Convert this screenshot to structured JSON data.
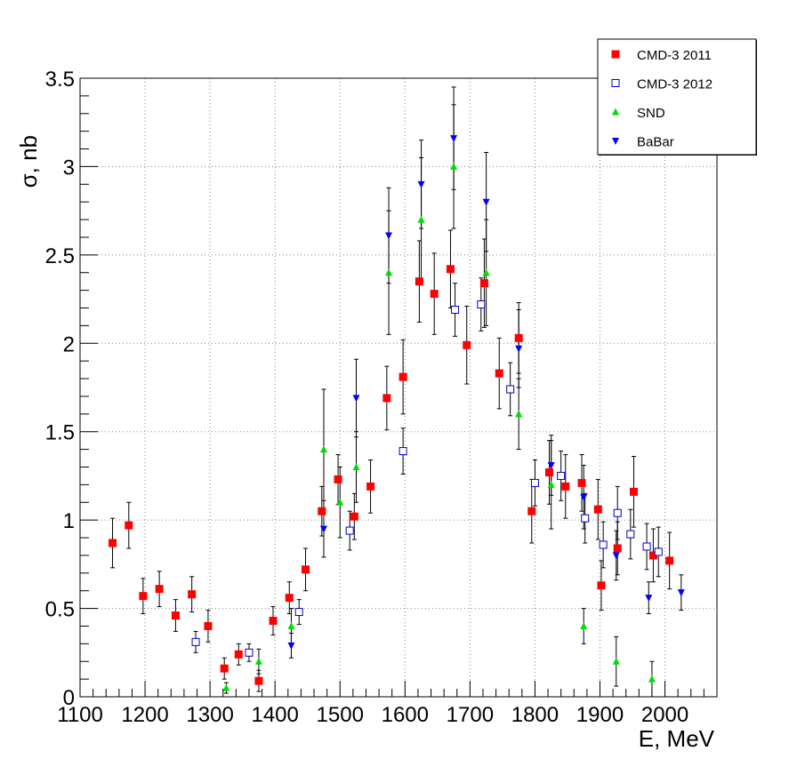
{
  "chart_data": {
    "type": "scatter",
    "title": "",
    "xlabel": "E, MeV",
    "ylabel": "σ, nb",
    "xlim": [
      1100,
      2080
    ],
    "ylim": [
      0,
      3.5
    ],
    "x_ticks": [
      "1100",
      "1200",
      "1300",
      "1400",
      "1500",
      "1600",
      "1700",
      "1800",
      "1900",
      "2000"
    ],
    "y_ticks": [
      "0",
      "0.5",
      "1",
      "1.5",
      "2",
      "2.5",
      "3",
      "3.5"
    ],
    "grid": true,
    "legend_position": "top-right",
    "series": [
      {
        "name": "CMD-3 2011",
        "marker": "filled-square",
        "color": "#ff0000",
        "points": [
          {
            "x": 1150,
            "y": 0.87,
            "err": 0.14
          },
          {
            "x": 1175,
            "y": 0.97,
            "err": 0.13
          },
          {
            "x": 1197,
            "y": 0.57,
            "err": 0.1
          },
          {
            "x": 1222,
            "y": 0.61,
            "err": 0.1
          },
          {
            "x": 1247,
            "y": 0.46,
            "err": 0.09
          },
          {
            "x": 1272,
            "y": 0.58,
            "err": 0.1
          },
          {
            "x": 1297,
            "y": 0.4,
            "err": 0.09
          },
          {
            "x": 1322,
            "y": 0.16,
            "err": 0.06
          },
          {
            "x": 1344,
            "y": 0.24,
            "err": 0.06
          },
          {
            "x": 1375,
            "y": 0.09,
            "err": 0.06
          },
          {
            "x": 1397,
            "y": 0.43,
            "err": 0.08
          },
          {
            "x": 1422,
            "y": 0.56,
            "err": 0.09
          },
          {
            "x": 1447,
            "y": 0.72,
            "err": 0.12
          },
          {
            "x": 1472,
            "y": 1.05,
            "err": 0.14
          },
          {
            "x": 1497,
            "y": 1.23,
            "err": 0.14
          },
          {
            "x": 1522,
            "y": 1.02,
            "err": 0.13
          },
          {
            "x": 1547,
            "y": 1.19,
            "err": 0.15
          },
          {
            "x": 1572,
            "y": 1.69,
            "err": 0.18
          },
          {
            "x": 1597,
            "y": 1.81,
            "err": 0.21
          },
          {
            "x": 1622,
            "y": 2.35,
            "err": 0.23
          },
          {
            "x": 1645,
            "y": 2.28,
            "err": 0.23
          },
          {
            "x": 1670,
            "y": 2.42,
            "err": 0.22
          },
          {
            "x": 1695,
            "y": 1.99,
            "err": 0.22
          },
          {
            "x": 1722,
            "y": 2.34,
            "err": 0.25
          },
          {
            "x": 1745,
            "y": 1.83,
            "err": 0.2
          },
          {
            "x": 1775,
            "y": 2.03,
            "err": 0.2
          },
          {
            "x": 1795,
            "y": 1.05,
            "err": 0.18
          },
          {
            "x": 1822,
            "y": 1.27,
            "err": 0.18
          },
          {
            "x": 1847,
            "y": 1.19,
            "err": 0.18
          },
          {
            "x": 1872,
            "y": 1.21,
            "err": 0.16
          },
          {
            "x": 1897,
            "y": 1.06,
            "err": 0.17
          },
          {
            "x": 1902,
            "y": 0.63,
            "err": 0.14
          },
          {
            "x": 1927,
            "y": 0.84,
            "err": 0.15
          },
          {
            "x": 1952,
            "y": 1.16,
            "err": 0.2
          },
          {
            "x": 1982,
            "y": 0.8,
            "err": 0.15
          },
          {
            "x": 2007,
            "y": 0.77,
            "err": 0.16
          }
        ]
      },
      {
        "name": "CMD-3 2012",
        "marker": "open-square",
        "color": "#0000cc",
        "points": [
          {
            "x": 1278,
            "y": 0.31,
            "err": 0.06
          },
          {
            "x": 1360,
            "y": 0.25,
            "err": 0.05
          },
          {
            "x": 1437,
            "y": 0.48,
            "err": 0.07
          },
          {
            "x": 1515,
            "y": 0.94,
            "err": 0.11
          },
          {
            "x": 1597,
            "y": 1.39,
            "err": 0.13
          },
          {
            "x": 1677,
            "y": 2.19,
            "err": 0.15
          },
          {
            "x": 1717,
            "y": 2.22,
            "err": 0.15
          },
          {
            "x": 1762,
            "y": 1.74,
            "err": 0.15
          },
          {
            "x": 1800,
            "y": 1.21,
            "err": 0.13
          },
          {
            "x": 1840,
            "y": 1.25,
            "err": 0.14
          },
          {
            "x": 1877,
            "y": 1.01,
            "err": 0.14
          },
          {
            "x": 1927,
            "y": 1.04,
            "err": 0.15
          },
          {
            "x": 1905,
            "y": 0.86,
            "err": 0.13
          },
          {
            "x": 1947,
            "y": 0.92,
            "err": 0.14
          },
          {
            "x": 1972,
            "y": 0.85,
            "err": 0.13
          },
          {
            "x": 1990,
            "y": 0.82,
            "err": 0.14
          }
        ]
      },
      {
        "name": "SND",
        "marker": "triangle-up",
        "color": "#00dd00",
        "points": [
          {
            "x": 1325,
            "y": 0.05,
            "err": 0.03
          },
          {
            "x": 1375,
            "y": 0.2,
            "err": 0.07
          },
          {
            "x": 1425,
            "y": 0.4,
            "err": 0.1
          },
          {
            "x": 1475,
            "y": 1.4,
            "err": 0.34
          },
          {
            "x": 1500,
            "y": 1.1,
            "err": 0.2
          },
          {
            "x": 1525,
            "y": 1.3,
            "err": 0.2
          },
          {
            "x": 1575,
            "y": 2.4,
            "err": 0.35
          },
          {
            "x": 1625,
            "y": 2.7,
            "err": 0.35
          },
          {
            "x": 1675,
            "y": 3.0,
            "err": 0.35
          },
          {
            "x": 1725,
            "y": 2.4,
            "err": 0.3
          },
          {
            "x": 1775,
            "y": 1.6,
            "err": 0.2
          },
          {
            "x": 1825,
            "y": 1.2,
            "err": 0.25
          },
          {
            "x": 1875,
            "y": 0.4,
            "err": 0.1
          },
          {
            "x": 1925,
            "y": 0.2,
            "err": 0.14
          },
          {
            "x": 1980,
            "y": 0.1,
            "err": 0.1
          }
        ]
      },
      {
        "name": "BaBar",
        "marker": "triangle-down",
        "color": "#0000ff",
        "points": [
          {
            "x": 1425,
            "y": 0.29,
            "err": 0.07
          },
          {
            "x": 1475,
            "y": 0.95,
            "err": 0.16
          },
          {
            "x": 1525,
            "y": 1.69,
            "err": 0.22
          },
          {
            "x": 1575,
            "y": 2.61,
            "err": 0.27
          },
          {
            "x": 1625,
            "y": 2.9,
            "err": 0.25
          },
          {
            "x": 1675,
            "y": 3.16,
            "err": 0.29
          },
          {
            "x": 1725,
            "y": 2.8,
            "err": 0.28
          },
          {
            "x": 1775,
            "y": 1.97,
            "err": 0.22
          },
          {
            "x": 1825,
            "y": 1.31,
            "err": 0.17
          },
          {
            "x": 1875,
            "y": 1.13,
            "err": 0.18
          },
          {
            "x": 1925,
            "y": 0.8,
            "err": 0.14
          },
          {
            "x": 1975,
            "y": 0.56,
            "err": 0.09
          },
          {
            "x": 2025,
            "y": 0.59,
            "err": 0.1
          }
        ]
      }
    ]
  }
}
